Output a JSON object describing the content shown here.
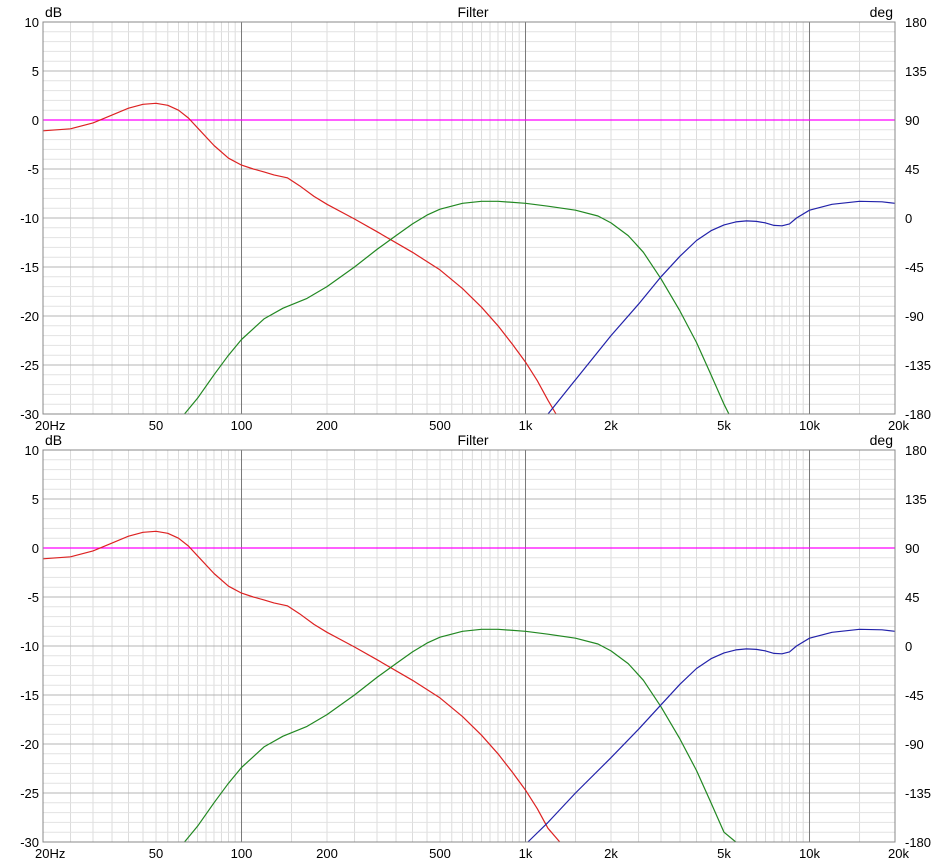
{
  "chart_data": [
    {
      "type": "line",
      "title": "Filter",
      "ylabel": "dB",
      "y2label": "deg",
      "xscale": "log",
      "xlim": [
        20,
        20000
      ],
      "ylim": [
        -30,
        10
      ],
      "y2lim": [
        -180,
        180
      ],
      "grid": true,
      "x_ticks": [
        {
          "v": 20,
          "label": "20Hz"
        },
        {
          "v": 50,
          "label": "50"
        },
        {
          "v": 100,
          "label": "100"
        },
        {
          "v": 200,
          "label": "200"
        },
        {
          "v": 500,
          "label": "500"
        },
        {
          "v": 1000,
          "label": "1k"
        },
        {
          "v": 2000,
          "label": "2k"
        },
        {
          "v": 5000,
          "label": "5k"
        },
        {
          "v": 10000,
          "label": "10k"
        },
        {
          "v": 20000,
          "label": "20k"
        }
      ],
      "y_ticks": [
        {
          "v": 10,
          "label": "10"
        },
        {
          "v": 5,
          "label": "5"
        },
        {
          "v": 0,
          "label": "0"
        },
        {
          "v": -5,
          "label": "-5"
        },
        {
          "v": -10,
          "label": "-10"
        },
        {
          "v": -15,
          "label": "-15"
        },
        {
          "v": -20,
          "label": "-20"
        },
        {
          "v": -25,
          "label": "-25"
        },
        {
          "v": -30,
          "label": "-30"
        }
      ],
      "y2_ticks": [
        {
          "v": 180,
          "label": "180"
        },
        {
          "v": 135,
          "label": "135"
        },
        {
          "v": 90,
          "label": "90"
        },
        {
          "v": 45,
          "label": "45"
        },
        {
          "v": 0,
          "label": "0"
        },
        {
          "v": -45,
          "label": "-45"
        },
        {
          "v": -90,
          "label": "-90"
        },
        {
          "v": -135,
          "label": "-135"
        },
        {
          "v": -180,
          "label": "-180"
        }
      ],
      "series": [
        {
          "color": "#ff00ff",
          "points": [
            [
              20,
              0
            ],
            [
              20000,
              0
            ]
          ]
        },
        {
          "color": "#dd2222",
          "points": [
            [
              20,
              -1.1
            ],
            [
              25,
              -0.9
            ],
            [
              30,
              -0.3
            ],
            [
              35,
              0.5
            ],
            [
              40,
              1.2
            ],
            [
              45,
              1.6
            ],
            [
              50,
              1.7
            ],
            [
              55,
              1.5
            ],
            [
              60,
              1.0
            ],
            [
              65,
              0.2
            ],
            [
              70,
              -0.8
            ],
            [
              80,
              -2.6
            ],
            [
              90,
              -3.9
            ],
            [
              100,
              -4.6
            ],
            [
              110,
              -5.0
            ],
            [
              120,
              -5.3
            ],
            [
              130,
              -5.6
            ],
            [
              145,
              -5.9
            ],
            [
              160,
              -6.7
            ],
            [
              180,
              -7.8
            ],
            [
              200,
              -8.6
            ],
            [
              250,
              -10.1
            ],
            [
              300,
              -11.4
            ],
            [
              400,
              -13.5
            ],
            [
              500,
              -15.3
            ],
            [
              600,
              -17.2
            ],
            [
              700,
              -19.1
            ],
            [
              800,
              -21.0
            ],
            [
              900,
              -22.9
            ],
            [
              1000,
              -24.7
            ],
            [
              1100,
              -26.6
            ],
            [
              1200,
              -28.6
            ],
            [
              1280,
              -30
            ]
          ]
        },
        {
          "color": "#228822",
          "points": [
            [
              63,
              -30
            ],
            [
              70,
              -28.4
            ],
            [
              80,
              -26.0
            ],
            [
              90,
              -24.0
            ],
            [
              100,
              -22.4
            ],
            [
              120,
              -20.3
            ],
            [
              140,
              -19.2
            ],
            [
              170,
              -18.2
            ],
            [
              200,
              -17.0
            ],
            [
              250,
              -15.0
            ],
            [
              300,
              -13.2
            ],
            [
              350,
              -11.8
            ],
            [
              400,
              -10.6
            ],
            [
              450,
              -9.7
            ],
            [
              500,
              -9.1
            ],
            [
              600,
              -8.5
            ],
            [
              700,
              -8.3
            ],
            [
              800,
              -8.3
            ],
            [
              1000,
              -8.5
            ],
            [
              1200,
              -8.8
            ],
            [
              1500,
              -9.2
            ],
            [
              1800,
              -9.8
            ],
            [
              2000,
              -10.5
            ],
            [
              2300,
              -11.8
            ],
            [
              2600,
              -13.5
            ],
            [
              3000,
              -16.2
            ],
            [
              3500,
              -19.5
            ],
            [
              4000,
              -22.7
            ],
            [
              4500,
              -26.0
            ],
            [
              5000,
              -29.0
            ],
            [
              5200,
              -30
            ]
          ]
        },
        {
          "color": "#2222aa",
          "points": [
            [
              1200,
              -30
            ],
            [
              1500,
              -26.5
            ],
            [
              2000,
              -22.0
            ],
            [
              2500,
              -18.8
            ],
            [
              3000,
              -16.0
            ],
            [
              3500,
              -13.9
            ],
            [
              4000,
              -12.3
            ],
            [
              4500,
              -11.3
            ],
            [
              5000,
              -10.7
            ],
            [
              5500,
              -10.4
            ],
            [
              6000,
              -10.3
            ],
            [
              6500,
              -10.35
            ],
            [
              7000,
              -10.5
            ],
            [
              7500,
              -10.75
            ],
            [
              8000,
              -10.8
            ],
            [
              8500,
              -10.6
            ],
            [
              9000,
              -10.0
            ],
            [
              10000,
              -9.2
            ],
            [
              12000,
              -8.6
            ],
            [
              15000,
              -8.3
            ],
            [
              18000,
              -8.35
            ],
            [
              20000,
              -8.5
            ]
          ]
        }
      ]
    },
    {
      "type": "line",
      "title": "Filter",
      "ylabel": "dB",
      "y2label": "deg",
      "xscale": "log",
      "xlim": [
        20,
        20000
      ],
      "ylim": [
        -30,
        10
      ],
      "y2lim": [
        -180,
        180
      ],
      "grid": true,
      "x_ticks": [
        {
          "v": 20,
          "label": "20Hz"
        },
        {
          "v": 50,
          "label": "50"
        },
        {
          "v": 100,
          "label": "100"
        },
        {
          "v": 200,
          "label": "200"
        },
        {
          "v": 500,
          "label": "500"
        },
        {
          "v": 1000,
          "label": "1k"
        },
        {
          "v": 2000,
          "label": "2k"
        },
        {
          "v": 5000,
          "label": "5k"
        },
        {
          "v": 10000,
          "label": "10k"
        },
        {
          "v": 20000,
          "label": "20k"
        }
      ],
      "y_ticks": [
        {
          "v": 10,
          "label": "10"
        },
        {
          "v": 5,
          "label": "5"
        },
        {
          "v": 0,
          "label": "0"
        },
        {
          "v": -5,
          "label": "-5"
        },
        {
          "v": -10,
          "label": "-10"
        },
        {
          "v": -15,
          "label": "-15"
        },
        {
          "v": -20,
          "label": "-20"
        },
        {
          "v": -25,
          "label": "-25"
        },
        {
          "v": -30,
          "label": "-30"
        }
      ],
      "y2_ticks": [
        {
          "v": 180,
          "label": "180"
        },
        {
          "v": 135,
          "label": "135"
        },
        {
          "v": 90,
          "label": "90"
        },
        {
          "v": 45,
          "label": "45"
        },
        {
          "v": 0,
          "label": "0"
        },
        {
          "v": -45,
          "label": "-45"
        },
        {
          "v": -90,
          "label": "-90"
        },
        {
          "v": -135,
          "label": "-135"
        },
        {
          "v": -180,
          "label": "-180"
        }
      ],
      "series": [
        {
          "color": "#ff00ff",
          "points": [
            [
              20,
              0
            ],
            [
              20000,
              0
            ]
          ]
        },
        {
          "color": "#dd2222",
          "points": [
            [
              20,
              -1.1
            ],
            [
              25,
              -0.9
            ],
            [
              30,
              -0.3
            ],
            [
              35,
              0.5
            ],
            [
              40,
              1.2
            ],
            [
              45,
              1.6
            ],
            [
              50,
              1.7
            ],
            [
              55,
              1.5
            ],
            [
              60,
              1.0
            ],
            [
              65,
              0.2
            ],
            [
              70,
              -0.8
            ],
            [
              80,
              -2.6
            ],
            [
              90,
              -3.9
            ],
            [
              100,
              -4.6
            ],
            [
              110,
              -5.0
            ],
            [
              120,
              -5.3
            ],
            [
              130,
              -5.6
            ],
            [
              145,
              -5.9
            ],
            [
              160,
              -6.7
            ],
            [
              180,
              -7.8
            ],
            [
              200,
              -8.6
            ],
            [
              250,
              -10.1
            ],
            [
              300,
              -11.4
            ],
            [
              400,
              -13.5
            ],
            [
              500,
              -15.3
            ],
            [
              600,
              -17.2
            ],
            [
              700,
              -19.1
            ],
            [
              800,
              -21.0
            ],
            [
              900,
              -22.9
            ],
            [
              1000,
              -24.7
            ],
            [
              1100,
              -26.6
            ],
            [
              1200,
              -28.6
            ],
            [
              1320,
              -30
            ]
          ]
        },
        {
          "color": "#228822",
          "points": [
            [
              63,
              -30
            ],
            [
              70,
              -28.4
            ],
            [
              80,
              -26.0
            ],
            [
              90,
              -24.0
            ],
            [
              100,
              -22.4
            ],
            [
              120,
              -20.3
            ],
            [
              140,
              -19.2
            ],
            [
              170,
              -18.2
            ],
            [
              200,
              -17.0
            ],
            [
              250,
              -15.0
            ],
            [
              300,
              -13.2
            ],
            [
              350,
              -11.8
            ],
            [
              400,
              -10.6
            ],
            [
              450,
              -9.7
            ],
            [
              500,
              -9.1
            ],
            [
              600,
              -8.5
            ],
            [
              700,
              -8.3
            ],
            [
              800,
              -8.3
            ],
            [
              1000,
              -8.5
            ],
            [
              1200,
              -8.8
            ],
            [
              1500,
              -9.2
            ],
            [
              1800,
              -9.8
            ],
            [
              2000,
              -10.5
            ],
            [
              2300,
              -11.8
            ],
            [
              2600,
              -13.5
            ],
            [
              3000,
              -16.2
            ],
            [
              3500,
              -19.5
            ],
            [
              4000,
              -22.7
            ],
            [
              4500,
              -26.0
            ],
            [
              5000,
              -29.0
            ],
            [
              5500,
              -30
            ]
          ]
        },
        {
          "color": "#2222aa",
          "points": [
            [
              1020,
              -30
            ],
            [
              1200,
              -28.0
            ],
            [
              1500,
              -25.0
            ],
            [
              2000,
              -21.4
            ],
            [
              2500,
              -18.5
            ],
            [
              3000,
              -16.0
            ],
            [
              3500,
              -13.9
            ],
            [
              4000,
              -12.3
            ],
            [
              4500,
              -11.3
            ],
            [
              5000,
              -10.7
            ],
            [
              5500,
              -10.4
            ],
            [
              6000,
              -10.3
            ],
            [
              6500,
              -10.35
            ],
            [
              7000,
              -10.5
            ],
            [
              7500,
              -10.75
            ],
            [
              8000,
              -10.8
            ],
            [
              8500,
              -10.6
            ],
            [
              9000,
              -10.0
            ],
            [
              10000,
              -9.2
            ],
            [
              12000,
              -8.6
            ],
            [
              15000,
              -8.3
            ],
            [
              18000,
              -8.35
            ],
            [
              20000,
              -8.5
            ]
          ]
        }
      ]
    }
  ]
}
